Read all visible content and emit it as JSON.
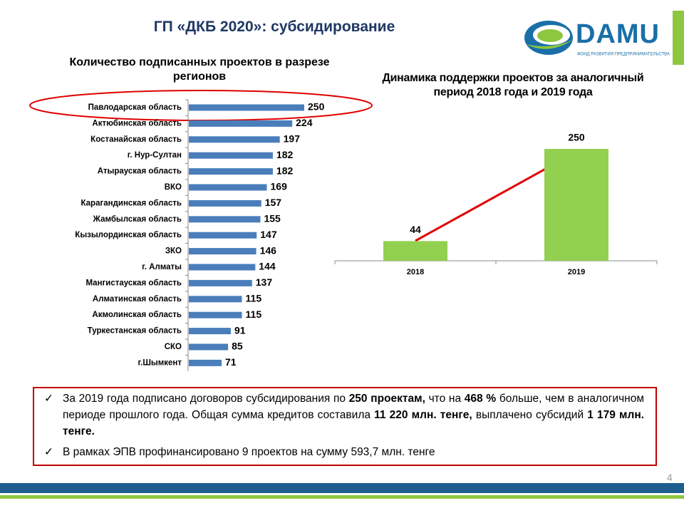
{
  "title": "ГП «ДКБ 2020»: субсидирование",
  "logo": {
    "name": "DAMU",
    "tagline": "ФОНД РАЗВИТИЯ ПРЕДПРИНИМАТЕЛЬСТВА"
  },
  "chart_data": [
    {
      "type": "bar",
      "orientation": "horizontal",
      "title": "Количество подписанных проектов в разрезе регионов",
      "categories": [
        "Павлодарская область",
        "Актюбинская область",
        "Костанайская область",
        "г. Нур-Султан",
        "Атырауская область",
        "ВКО",
        "Карагандинская область",
        "Жамбылская область",
        "Кызылординская область",
        "ЗКО",
        "г. Алматы",
        "Мангистауская область",
        "Алматинская область",
        "Акмолинская область",
        "Туркестанская область",
        "СКО",
        "г.Шымкент"
      ],
      "values": [
        250,
        224,
        197,
        182,
        182,
        169,
        157,
        155,
        147,
        146,
        144,
        137,
        115,
        115,
        91,
        85,
        71
      ],
      "color": "#4a7ebb"
    },
    {
      "type": "bar",
      "orientation": "vertical",
      "title": "Динамика поддержки проектов за аналогичный период 2018 года и  2019 года",
      "categories": [
        "2018",
        "2019"
      ],
      "values": [
        44,
        250
      ],
      "color": "#92d050"
    }
  ],
  "bullet_marker": "✓",
  "notes": [
    {
      "runs": [
        {
          "text": "За 2019 года подписано договоров субсидирования по ",
          "bold": false
        },
        {
          "text": "250 проектам,",
          "bold": true
        },
        {
          "text": " что на ",
          "bold": false
        },
        {
          "text": "468 %",
          "bold": true
        },
        {
          "text": " больше, чем в аналогичном периоде прошлого года. Общая сумма кредитов составила ",
          "bold": false
        },
        {
          "text": "11 220 млн. тенге,",
          "bold": true
        },
        {
          "text": " выплачено субсидий ",
          "bold": false
        },
        {
          "text": "1 179 млн. тенге.",
          "bold": true
        }
      ]
    },
    {
      "runs": [
        {
          "text": "В рамках ЭПВ профинансировано 9 проектов на сумму 593,7 млн. тенге",
          "bold": false
        }
      ]
    }
  ],
  "page_number": 4
}
